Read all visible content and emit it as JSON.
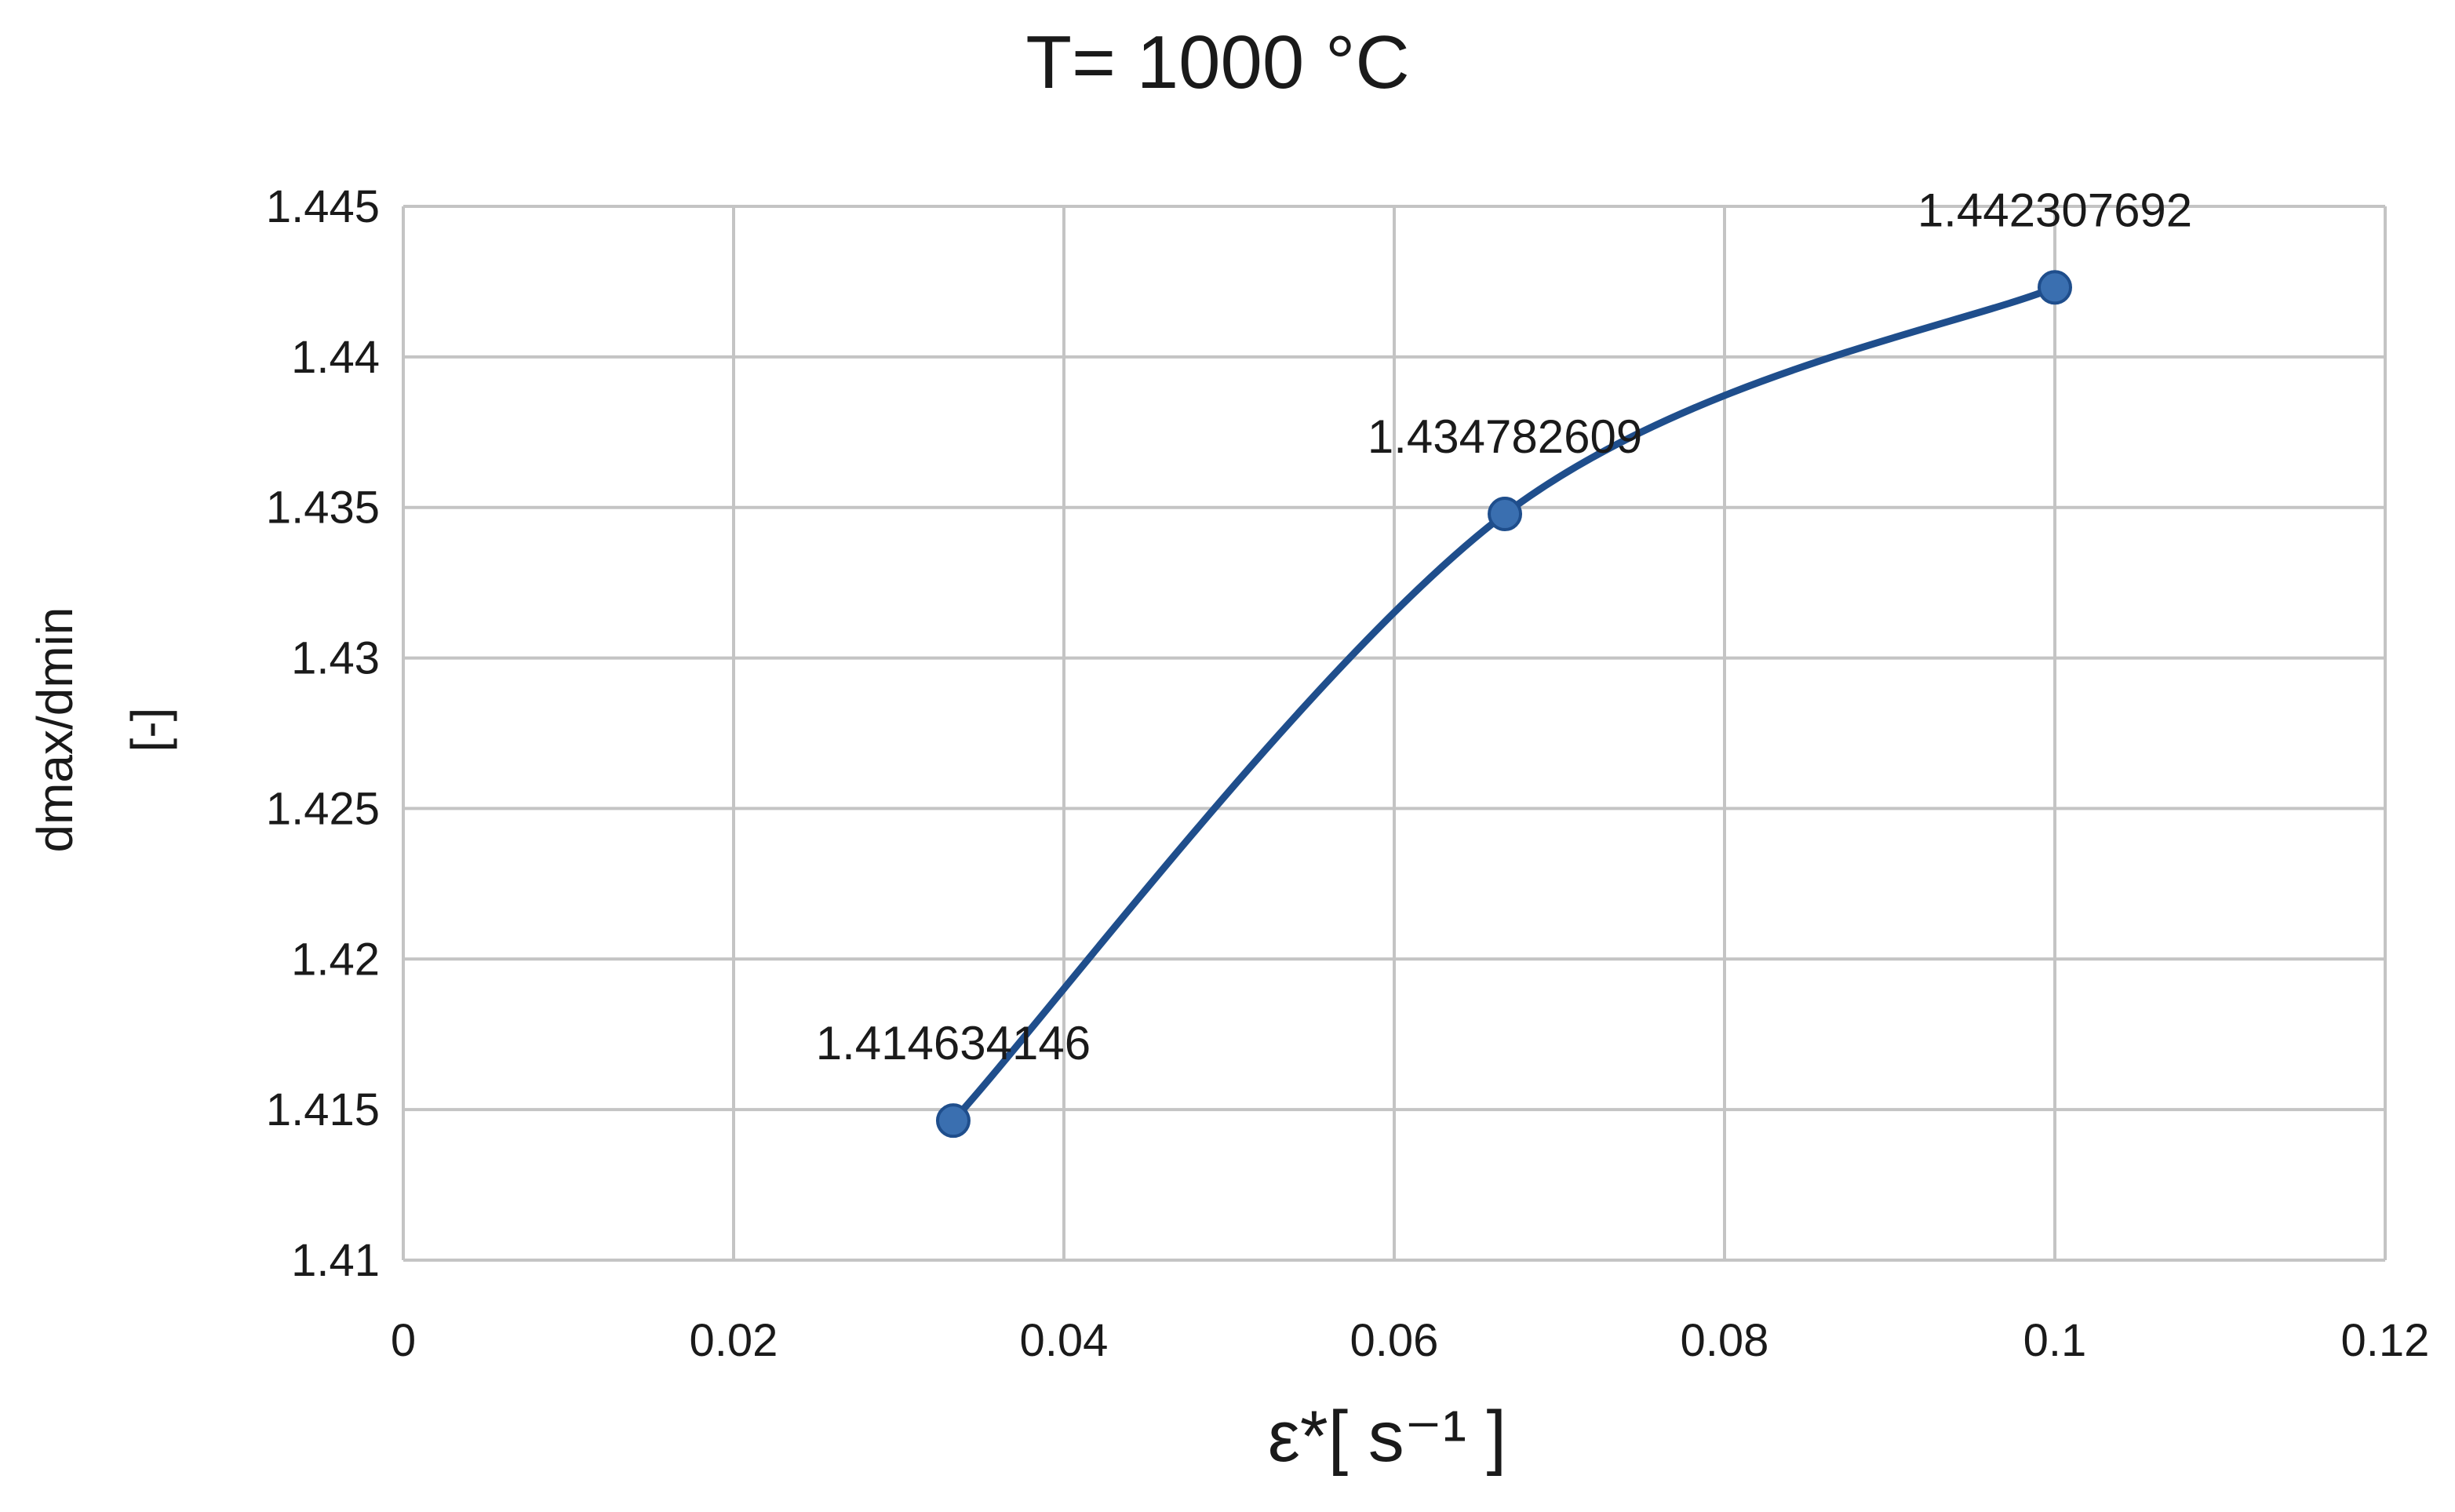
{
  "chart_data": {
    "type": "line",
    "title": "T= 1000 °C",
    "xlabel": "ε*[ s⁻¹ ]",
    "ylabel_lines": [
      "dmax/dmin",
      "[-]"
    ],
    "xlim": [
      0,
      0.12
    ],
    "ylim": [
      1.41,
      1.445
    ],
    "x_ticks": [
      "0",
      "0.02",
      "0.04",
      "0.06",
      "0.08",
      "0.1",
      "0.12"
    ],
    "y_ticks": [
      "1.41",
      "1.415",
      "1.42",
      "1.425",
      "1.43",
      "1.435",
      "1.44",
      "1.445"
    ],
    "grid": true,
    "smooth": true,
    "series": [
      {
        "color": "#1f4e8c",
        "marker_color": "#3a6fb0",
        "points": [
          {
            "x": 0.0333,
            "y": 1.414634146,
            "label": "1.414634146"
          },
          {
            "x": 0.0667,
            "y": 1.434782609,
            "label": "1.434782609"
          },
          {
            "x": 0.1,
            "y": 1.442307692,
            "label": "1.442307692"
          }
        ]
      }
    ]
  }
}
